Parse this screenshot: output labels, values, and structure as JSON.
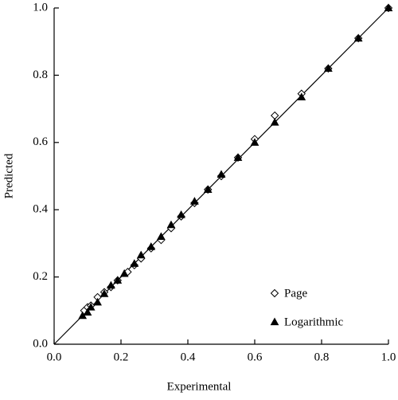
{
  "chart_data": {
    "type": "scatter",
    "x_label": "Experimental",
    "y_label": "Predicted",
    "xlim": [
      0,
      1
    ],
    "ylim": [
      0,
      1
    ],
    "xticks": [
      {
        "value": 0,
        "label": "0.0"
      },
      0.2,
      0.4,
      0.6,
      0.8,
      {
        "value": 1,
        "label": "1.0"
      }
    ],
    "yticks": [
      {
        "value": 0,
        "label": "0.0"
      },
      0.2,
      0.4,
      0.6,
      0.8,
      {
        "value": 1,
        "label": "1.0"
      }
    ],
    "identity_line": true,
    "legend": "lower right",
    "series": [
      {
        "name": "Page",
        "color": "#000000",
        "marker": "diamond",
        "filled": false,
        "x": [
          0.09,
          0.1,
          0.11,
          0.13,
          0.15,
          0.17,
          0.19,
          0.22,
          0.24,
          0.26,
          0.29,
          0.32,
          0.35,
          0.38,
          0.42,
          0.46,
          0.5,
          0.55,
          0.6,
          0.66,
          0.74,
          0.82,
          0.91,
          1.0
        ],
        "values": [
          0.1,
          0.11,
          0.115,
          0.14,
          0.155,
          0.17,
          0.19,
          0.215,
          0.235,
          0.255,
          0.285,
          0.31,
          0.345,
          0.38,
          0.42,
          0.46,
          0.5,
          0.555,
          0.61,
          0.68,
          0.745,
          0.82,
          0.91,
          1.0
        ]
      },
      {
        "name": "Logarithmic",
        "color": "#000000",
        "marker": "triangle",
        "filled": true,
        "x": [
          0.085,
          0.1,
          0.11,
          0.13,
          0.15,
          0.17,
          0.19,
          0.21,
          0.24,
          0.26,
          0.29,
          0.32,
          0.35,
          0.38,
          0.42,
          0.46,
          0.5,
          0.55,
          0.6,
          0.66,
          0.74,
          0.82,
          0.91,
          1.0
        ],
        "values": [
          0.085,
          0.095,
          0.11,
          0.125,
          0.15,
          0.175,
          0.19,
          0.21,
          0.24,
          0.265,
          0.29,
          0.32,
          0.355,
          0.385,
          0.425,
          0.46,
          0.505,
          0.555,
          0.6,
          0.66,
          0.735,
          0.82,
          0.91,
          1.0
        ]
      }
    ]
  }
}
